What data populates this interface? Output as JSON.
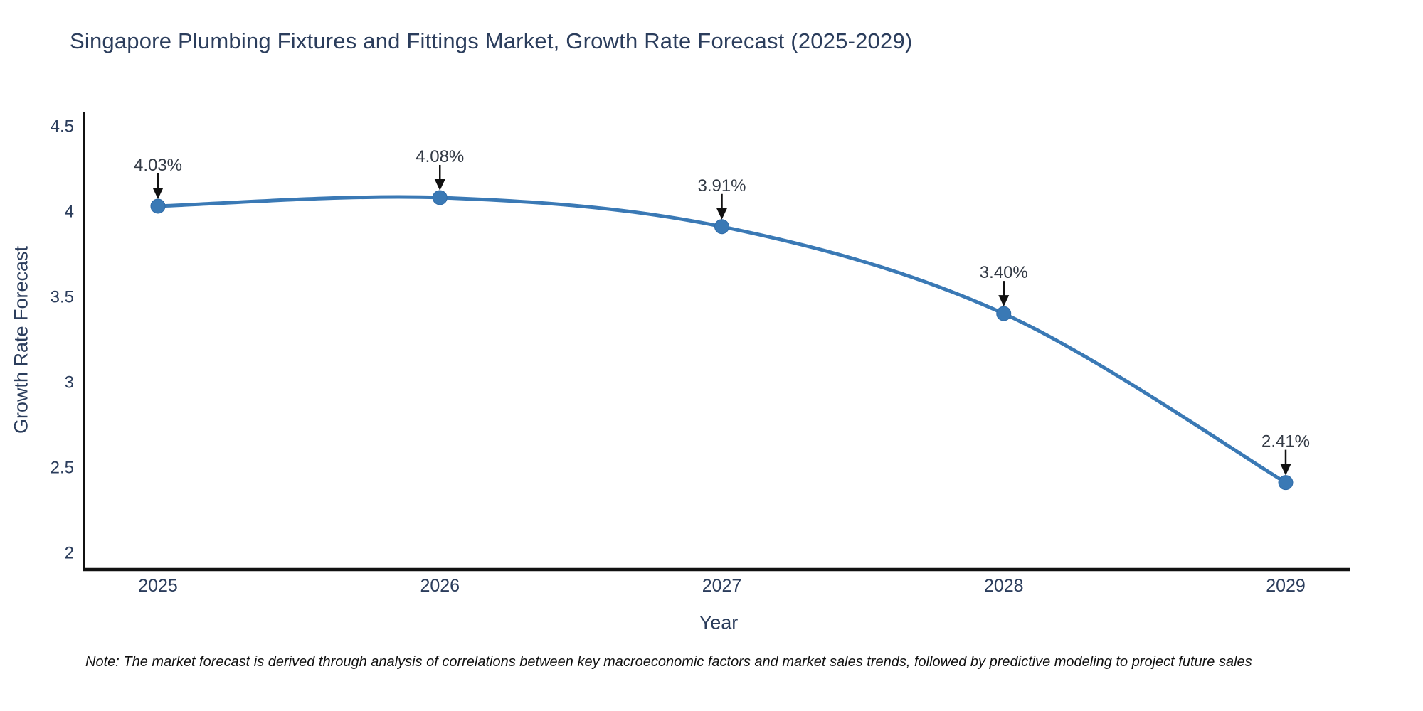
{
  "page": {
    "title": "Singapore Plumbing Fixtures and Fittings Market, Growth Rate Forecast (2025-2029)",
    "note": "Note: The market forecast is derived through analysis of correlations between key macroeconomic factors and market sales trends, followed by predictive modeling to project future sales"
  },
  "chart_data": {
    "type": "line",
    "title": "Singapore Plumbing Fixtures and Fittings Market, Growth Rate Forecast (2025-2029)",
    "xlabel": "Year",
    "ylabel": "Growth Rate Forecast",
    "x": [
      "2025",
      "2026",
      "2027",
      "2028",
      "2029"
    ],
    "values": [
      4.03,
      4.08,
      3.91,
      3.4,
      2.41
    ],
    "point_labels": [
      "4.03%",
      "4.08%",
      "3.91%",
      "3.40%",
      "2.41%"
    ],
    "series_name": "Growth Rate Forecast",
    "line_shape": "spline",
    "markers": true,
    "annotations_arrows": true,
    "grid": false,
    "legend_position": "none",
    "ylim": [
      1.9,
      4.58
    ],
    "yticks": [
      2,
      2.5,
      3,
      3.5,
      4,
      4.5
    ],
    "ytick_labels": [
      "2",
      "2.5",
      "3",
      "3.5",
      "4",
      "4.5"
    ],
    "xtick_labels": [
      "2025",
      "2026",
      "2027",
      "2028",
      "2029"
    ],
    "colors": {
      "line": "#3a79b5",
      "marker_fill": "#3a79b5",
      "marker_edge": "#2f6ba8",
      "axis": "#111111",
      "tick_text": "#2b3d5c",
      "annotation_text": "#333a45",
      "arrow": "#111111",
      "title_text": "#2b3d5c",
      "note_text": "#111111",
      "background": "#ffffff"
    }
  }
}
